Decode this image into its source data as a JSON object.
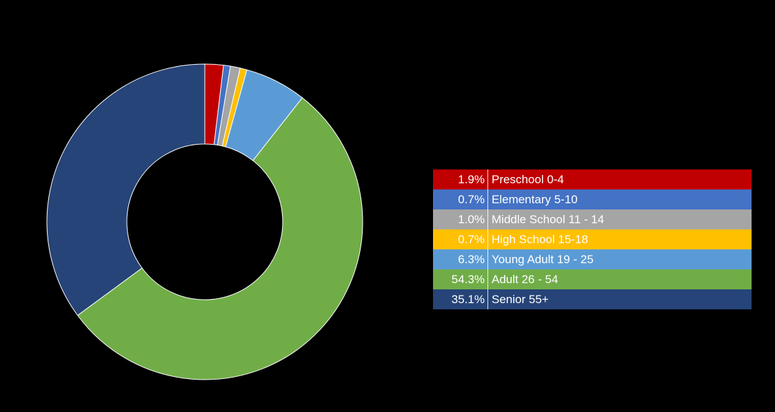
{
  "chart_data": {
    "type": "pie",
    "donut": true,
    "title": "",
    "categories": [
      "Preschool 0-4",
      "Elementary 5-10",
      "Middle School 11 - 14",
      "High School 15-18",
      "Young Adult 19 - 25",
      "Adult 26 - 54",
      "Senior 55+"
    ],
    "values": [
      1.9,
      0.7,
      1.0,
      0.7,
      6.3,
      54.3,
      35.1
    ],
    "value_labels": [
      "1.9%",
      "0.7%",
      "1.0%",
      "0.7%",
      "6.3%",
      "54.3%",
      "35.1%"
    ],
    "colors": [
      "#c00000",
      "#4472c4",
      "#a5a5a5",
      "#ffc000",
      "#5b9bd5",
      "#70ad47",
      "#264478"
    ],
    "legend_position": "right"
  },
  "background_color": "#000000"
}
